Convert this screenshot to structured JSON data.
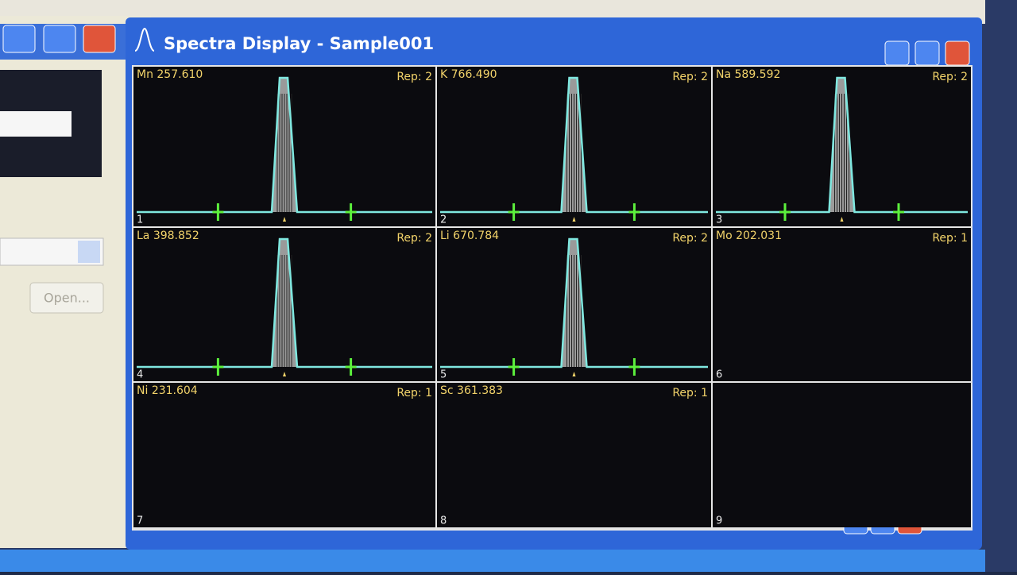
{
  "window": {
    "title": "Spectra Display - Sample001"
  },
  "left_window": {
    "button": "Open..."
  },
  "panels": [
    {
      "number": "1",
      "element": "Mn 257.610",
      "rep": "Rep: 2",
      "spectrum": true
    },
    {
      "number": "2",
      "element": "K 766.490",
      "rep": "Rep: 2",
      "spectrum": true
    },
    {
      "number": "3",
      "element": "Na 589.592",
      "rep": "Rep: 2",
      "spectrum": true
    },
    {
      "number": "4",
      "element": "La 398.852",
      "rep": "Rep: 2",
      "spectrum": true
    },
    {
      "number": "5",
      "element": "Li 670.784",
      "rep": "Rep: 2",
      "spectrum": true
    },
    {
      "number": "6",
      "element": "Mo 202.031",
      "rep": "Rep: 1",
      "spectrum": false
    },
    {
      "number": "7",
      "element": "Ni 231.604",
      "rep": "Rep: 1",
      "spectrum": false
    },
    {
      "number": "8",
      "element": "Sc 361.383",
      "rep": "Rep: 1",
      "spectrum": false
    },
    {
      "number": "9",
      "spectrum": false
    }
  ]
}
